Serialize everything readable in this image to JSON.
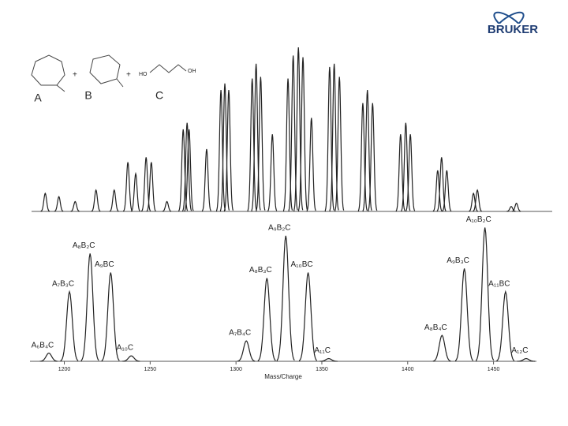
{
  "logo": "BRUKER",
  "structures": {
    "labels": [
      "A",
      "B",
      "C"
    ],
    "plus": "+",
    "hydroxyl_left": "HO",
    "hydroxyl_right": "OH"
  },
  "chart_data": [
    {
      "type": "spectrum",
      "x": [
        521,
        542,
        567,
        599,
        627,
        648,
        660,
        676,
        684,
        708,
        733,
        739,
        742,
        769,
        791,
        797,
        803,
        839,
        845,
        852,
        870,
        894,
        902,
        910,
        917,
        930,
        958,
        965,
        973,
        1009,
        1016,
        1024,
        1067,
        1075,
        1082,
        1124,
        1130,
        1138,
        1179,
        1185,
        1237,
        1245
      ],
      "values": [
        11,
        9,
        6,
        13,
        13,
        30,
        23,
        33,
        30,
        6,
        50,
        54,
        50,
        38,
        74,
        78,
        74,
        81,
        90,
        82,
        47,
        81,
        95,
        100,
        94,
        57,
        88,
        90,
        82,
        66,
        74,
        66,
        47,
        54,
        47,
        25,
        33,
        25,
        11,
        13,
        3,
        5
      ],
      "xlim": [
        500,
        1300
      ],
      "ylim": [
        0,
        100
      ],
      "color": "#222222"
    },
    {
      "type": "spectrum",
      "x": [
        1191,
        1203,
        1215,
        1227,
        1239,
        1306,
        1318,
        1329,
        1342,
        1354,
        1420,
        1433,
        1445,
        1457,
        1469
      ],
      "values": [
        6,
        51,
        79,
        65,
        4,
        15,
        61,
        92,
        65,
        2,
        19,
        68,
        98,
        51,
        2
      ],
      "peak_labels": [
        "A₆B₄C",
        "A₇B₃C",
        "A₈B₂C",
        "A₉BC",
        "A₁₀C",
        "A₇B₄C",
        "A₈B₃C",
        "A₉B₂C",
        "A₁₀BC",
        "A₁₁C",
        "A₈B₄C",
        "A₉B₃C",
        "A₁₀B₂C",
        "A₁₁BC",
        "A₁₂C"
      ],
      "xlim": [
        1180,
        1475
      ],
      "ylim": [
        0,
        100
      ],
      "xticks": [
        1200,
        1250,
        1300,
        1350,
        1400,
        1450
      ],
      "xlabel": "Mass/Charge",
      "color": "#222222"
    }
  ]
}
